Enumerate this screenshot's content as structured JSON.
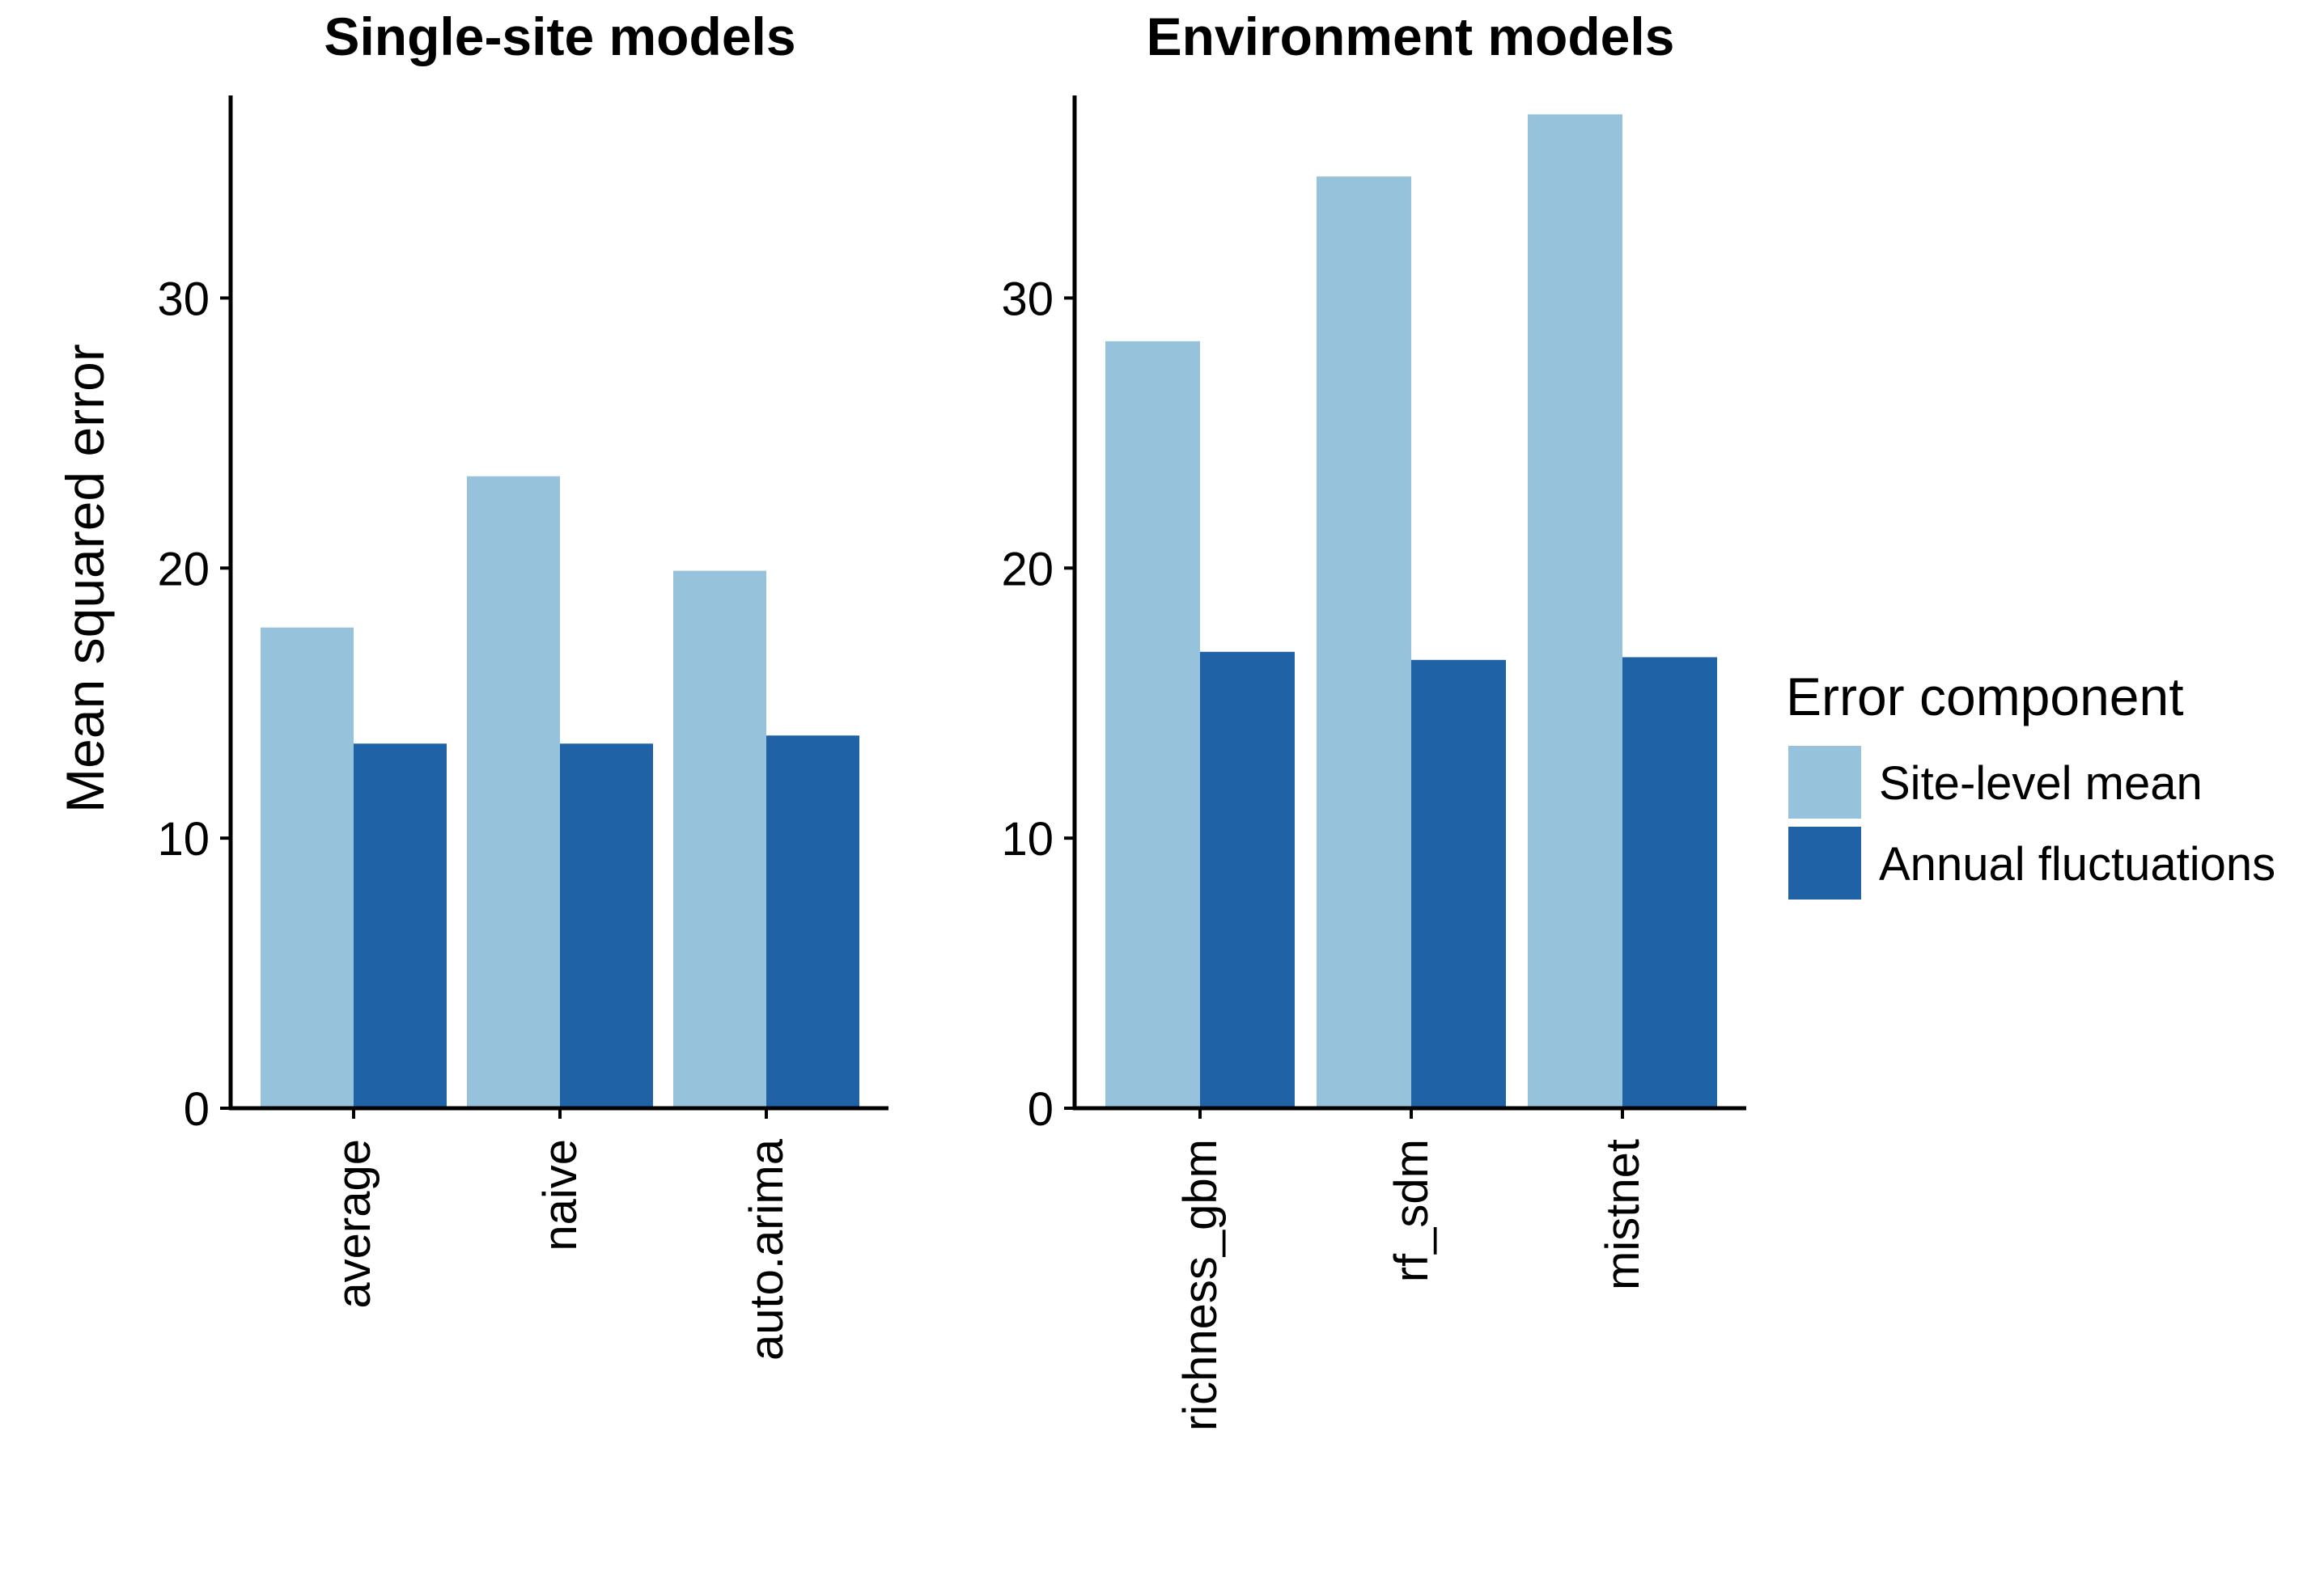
{
  "chart_data": {
    "type": "bar",
    "ylabel": "Mean squared error",
    "ylim": [
      0,
      37.5
    ],
    "yticks": [
      0,
      10,
      20,
      30
    ],
    "grid": false,
    "legend": {
      "title": "Error component",
      "placement": "right",
      "entries": [
        "Site-level mean",
        "Annual fluctuations"
      ]
    },
    "series_colors": {
      "Site-level mean": "#97c2db",
      "Annual fluctuations": "#1f62a6"
    },
    "panels": [
      {
        "title": "Single-site models",
        "categories": [
          "average",
          "naive",
          "auto.arima"
        ],
        "series": [
          {
            "name": "Site-level mean",
            "values": [
              17.8,
              23.4,
              19.9
            ]
          },
          {
            "name": "Annual fluctuations",
            "values": [
              13.5,
              13.5,
              13.8
            ]
          }
        ]
      },
      {
        "title": "Environment models",
        "categories": [
          "richness_gbm",
          "rf_sdm",
          "mistnet"
        ],
        "series": [
          {
            "name": "Site-level mean",
            "values": [
              28.4,
              34.5,
              36.8
            ]
          },
          {
            "name": "Annual fluctuations",
            "values": [
              16.9,
              16.6,
              16.7
            ]
          }
        ]
      }
    ]
  }
}
